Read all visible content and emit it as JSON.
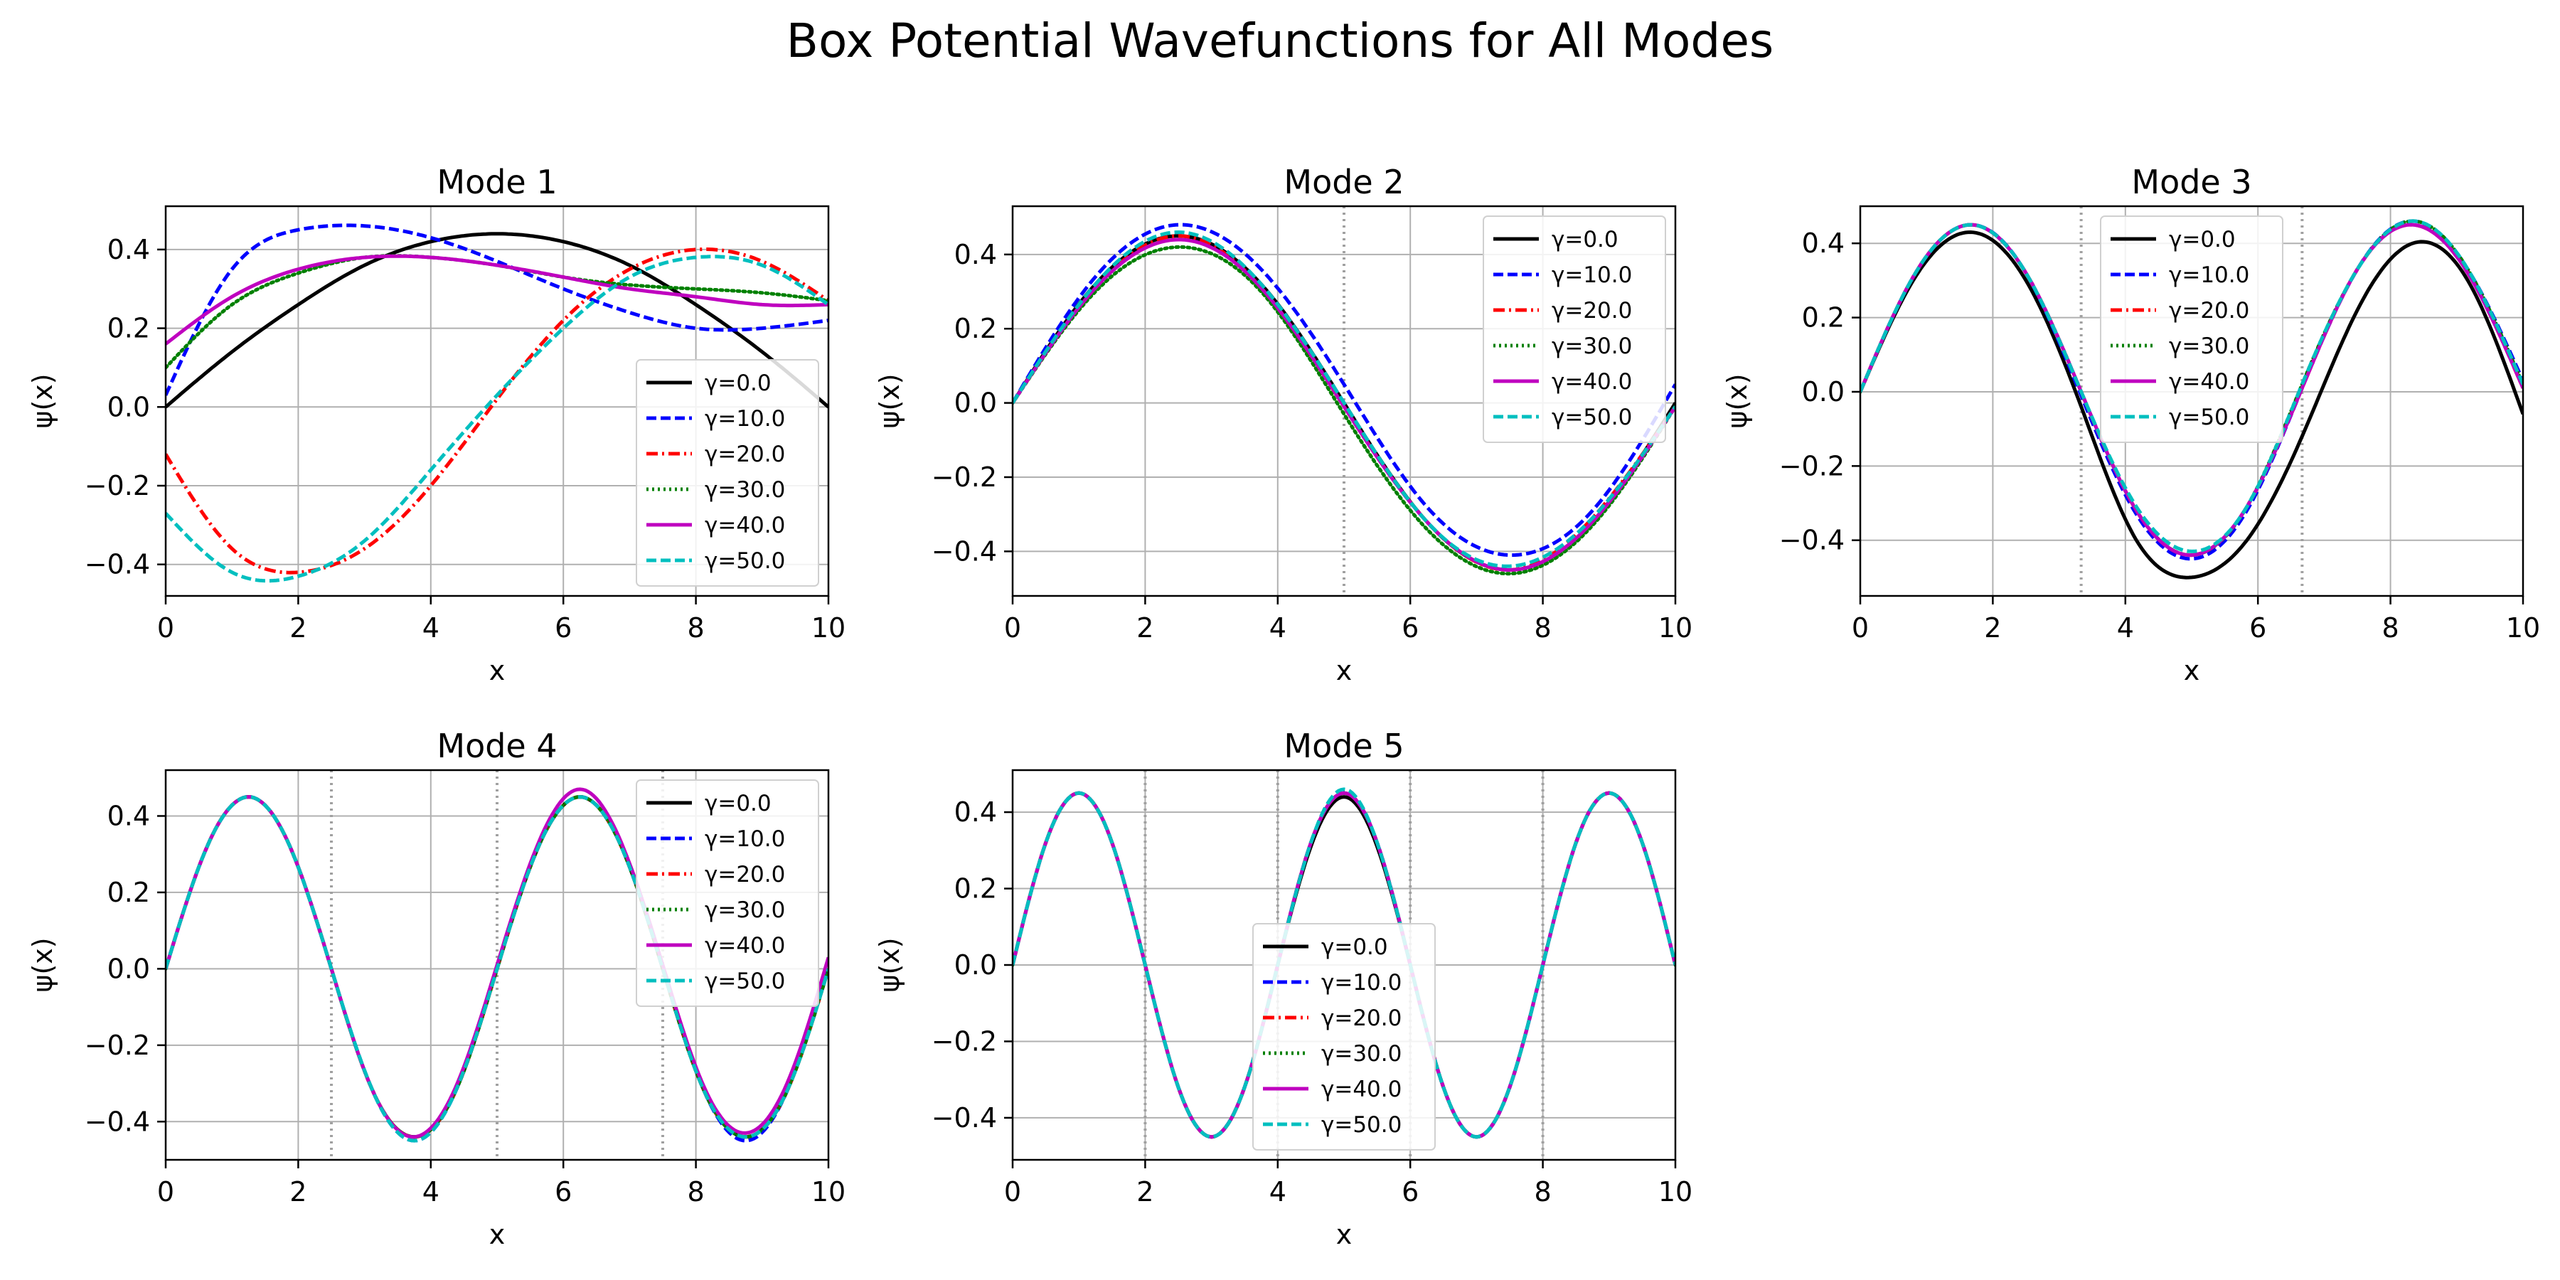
{
  "figure": {
    "title": "Box Potential Wavefunctions for All Modes"
  },
  "legend_labels": [
    "γ=0.0",
    "γ=10.0",
    "γ=20.0",
    "γ=30.0",
    "γ=40.0",
    "γ=50.0"
  ],
  "series_styles": [
    {
      "color": "#000000",
      "dash": "solid"
    },
    {
      "color": "#0000ff",
      "dash": "dashed"
    },
    {
      "color": "#ff0000",
      "dash": "dashdot"
    },
    {
      "color": "#008000",
      "dash": "dotted"
    },
    {
      "color": "#bf00bf",
      "dash": "solid"
    },
    {
      "color": "#00bfbf",
      "dash": "dashed"
    }
  ],
  "chart_data": [
    {
      "type": "line",
      "title": "Mode 1",
      "xlabel": "x",
      "ylabel": "ψ(x)",
      "xlim": [
        0,
        10
      ],
      "ylim": [
        -0.48,
        0.51
      ],
      "xticks": [
        0,
        2,
        4,
        6,
        8,
        10
      ],
      "yticks": [
        -0.4,
        -0.2,
        0.0,
        0.2,
        0.4
      ],
      "grid": true,
      "legend_position": "lower-right",
      "node_lines": [],
      "x": [
        0,
        1,
        2,
        3,
        4,
        5,
        6,
        7,
        8,
        9,
        10
      ],
      "series": [
        {
          "name": "γ=0.0",
          "values": [
            0.0,
            0.14,
            0.26,
            0.36,
            0.42,
            0.44,
            0.42,
            0.36,
            0.26,
            0.14,
            0.0
          ]
        },
        {
          "name": "γ=10.0",
          "values": [
            0.03,
            0.35,
            0.45,
            0.46,
            0.43,
            0.37,
            0.3,
            0.24,
            0.2,
            0.2,
            0.22
          ]
        },
        {
          "name": "γ=20.0",
          "values": [
            -0.12,
            -0.36,
            -0.42,
            -0.36,
            -0.2,
            0.02,
            0.22,
            0.35,
            0.4,
            0.37,
            0.27
          ]
        },
        {
          "name": "γ=30.0",
          "values": [
            0.1,
            0.26,
            0.34,
            0.38,
            0.38,
            0.36,
            0.33,
            0.31,
            0.3,
            0.29,
            0.27
          ]
        },
        {
          "name": "γ=40.0",
          "values": [
            0.16,
            0.28,
            0.35,
            0.38,
            0.38,
            0.36,
            0.33,
            0.3,
            0.28,
            0.26,
            0.26
          ]
        },
        {
          "name": "γ=50.0",
          "values": [
            -0.27,
            -0.42,
            -0.43,
            -0.34,
            -0.16,
            0.03,
            0.2,
            0.33,
            0.38,
            0.36,
            0.26
          ]
        }
      ]
    },
    {
      "type": "line",
      "title": "Mode 2",
      "xlabel": "x",
      "ylabel": "ψ(x)",
      "xlim": [
        0,
        10
      ],
      "ylim": [
        -0.52,
        0.53
      ],
      "xticks": [
        0,
        2,
        4,
        6,
        8,
        10
      ],
      "yticks": [
        -0.4,
        -0.2,
        0.0,
        0.2,
        0.4
      ],
      "grid": true,
      "legend_position": "upper-right",
      "node_lines": [
        5
      ],
      "x": [
        0,
        1.25,
        2.5,
        3.75,
        5,
        6.25,
        7.5,
        8.75,
        10
      ],
      "series": [
        {
          "name": "γ=0.0",
          "values": [
            0.0,
            0.32,
            0.45,
            0.32,
            0.0,
            -0.32,
            -0.45,
            -0.32,
            0.0
          ]
        },
        {
          "name": "γ=10.0",
          "values": [
            0.0,
            0.34,
            0.48,
            0.36,
            0.05,
            -0.28,
            -0.41,
            -0.29,
            0.05
          ]
        },
        {
          "name": "γ=20.0",
          "values": [
            0.0,
            0.31,
            0.45,
            0.31,
            -0.01,
            -0.32,
            -0.45,
            -0.31,
            -0.01
          ]
        },
        {
          "name": "γ=30.0",
          "values": [
            0.0,
            0.3,
            0.42,
            0.3,
            -0.03,
            -0.34,
            -0.46,
            -0.33,
            -0.01
          ]
        },
        {
          "name": "γ=40.0",
          "values": [
            0.0,
            0.31,
            0.44,
            0.31,
            -0.01,
            -0.32,
            -0.45,
            -0.32,
            -0.01
          ]
        },
        {
          "name": "γ=50.0",
          "values": [
            0.0,
            0.32,
            0.46,
            0.32,
            0.0,
            -0.32,
            -0.44,
            -0.31,
            -0.01
          ]
        }
      ]
    },
    {
      "type": "line",
      "title": "Mode 3",
      "xlabel": "x",
      "ylabel": "ψ(x)",
      "xlim": [
        0,
        10
      ],
      "ylim": [
        -0.55,
        0.5
      ],
      "xticks": [
        0,
        2,
        4,
        6,
        8,
        10
      ],
      "yticks": [
        -0.4,
        -0.2,
        0.0,
        0.2,
        0.4
      ],
      "grid": true,
      "legend_position": "upper-center",
      "node_lines": [
        3.333,
        6.667
      ],
      "x": [
        0,
        0.833,
        1.667,
        2.5,
        3.333,
        4.167,
        5,
        5.833,
        6.667,
        7.5,
        8.333,
        9.167,
        10
      ],
      "series": [
        {
          "name": "γ=0.0",
          "values": [
            0.0,
            0.31,
            0.43,
            0.3,
            -0.04,
            -0.4,
            -0.5,
            -0.4,
            -0.12,
            0.22,
            0.4,
            0.3,
            -0.06
          ]
        },
        {
          "name": "γ=10.0",
          "values": [
            0.0,
            0.32,
            0.45,
            0.32,
            -0.01,
            -0.33,
            -0.45,
            -0.32,
            0.01,
            0.33,
            0.46,
            0.33,
            0.03
          ]
        },
        {
          "name": "γ=20.0",
          "values": [
            0.0,
            0.32,
            0.45,
            0.32,
            0.0,
            -0.32,
            -0.44,
            -0.31,
            0.01,
            0.33,
            0.45,
            0.32,
            0.01
          ]
        },
        {
          "name": "γ=30.0",
          "values": [
            0.0,
            0.32,
            0.45,
            0.32,
            0.0,
            -0.32,
            -0.44,
            -0.31,
            0.02,
            0.33,
            0.46,
            0.33,
            0.02
          ]
        },
        {
          "name": "γ=40.0",
          "values": [
            0.0,
            0.32,
            0.45,
            0.32,
            0.0,
            -0.32,
            -0.44,
            -0.31,
            0.01,
            0.33,
            0.45,
            0.32,
            0.01
          ]
        },
        {
          "name": "γ=50.0",
          "values": [
            0.0,
            0.32,
            0.45,
            0.32,
            0.0,
            -0.31,
            -0.43,
            -0.31,
            0.02,
            0.33,
            0.46,
            0.33,
            0.02
          ]
        }
      ]
    },
    {
      "type": "line",
      "title": "Mode 4",
      "xlabel": "x",
      "ylabel": "ψ(x)",
      "xlim": [
        0,
        10
      ],
      "ylim": [
        -0.5,
        0.52
      ],
      "xticks": [
        0,
        2,
        4,
        6,
        8,
        10
      ],
      "yticks": [
        -0.4,
        -0.2,
        0.0,
        0.2,
        0.4
      ],
      "grid": true,
      "legend_position": "upper-right",
      "node_lines": [
        2.5,
        5,
        7.5
      ],
      "x": [
        0,
        0.625,
        1.25,
        1.875,
        2.5,
        3.125,
        3.75,
        4.375,
        5,
        5.625,
        6.25,
        6.875,
        7.5,
        8.125,
        8.75,
        9.375,
        10
      ],
      "series": [
        {
          "name": "γ=0.0",
          "values": [
            0.0,
            0.32,
            0.45,
            0.32,
            0.0,
            -0.32,
            -0.44,
            -0.32,
            0.0,
            0.32,
            0.45,
            0.32,
            0.0,
            -0.32,
            -0.44,
            -0.32,
            0.0
          ]
        },
        {
          "name": "γ=10.0",
          "values": [
            0.0,
            0.32,
            0.45,
            0.32,
            0.0,
            -0.32,
            -0.45,
            -0.32,
            0.0,
            0.32,
            0.45,
            0.32,
            0.0,
            -0.32,
            -0.45,
            -0.32,
            0.0
          ]
        },
        {
          "name": "γ=20.0",
          "values": [
            0.0,
            0.32,
            0.45,
            0.32,
            0.0,
            -0.32,
            -0.44,
            -0.32,
            0.0,
            0.32,
            0.45,
            0.32,
            0.0,
            -0.32,
            -0.44,
            -0.32,
            0.0
          ]
        },
        {
          "name": "γ=30.0",
          "values": [
            0.0,
            0.32,
            0.45,
            0.32,
            0.0,
            -0.32,
            -0.44,
            -0.32,
            0.0,
            0.32,
            0.45,
            0.32,
            0.0,
            -0.32,
            -0.44,
            -0.32,
            0.0
          ]
        },
        {
          "name": "γ=40.0",
          "values": [
            0.0,
            0.32,
            0.45,
            0.32,
            0.0,
            -0.32,
            -0.44,
            -0.31,
            0.01,
            0.33,
            0.47,
            0.33,
            0.01,
            -0.31,
            -0.43,
            -0.3,
            0.03
          ]
        },
        {
          "name": "γ=50.0",
          "values": [
            0.0,
            0.32,
            0.45,
            0.32,
            0.0,
            -0.32,
            -0.45,
            -0.32,
            0.0,
            0.32,
            0.45,
            0.32,
            0.0,
            -0.32,
            -0.44,
            -0.32,
            0.0
          ]
        }
      ]
    },
    {
      "type": "line",
      "title": "Mode 5",
      "xlabel": "x",
      "ylabel": "ψ(x)",
      "xlim": [
        0,
        10
      ],
      "ylim": [
        -0.51,
        0.51
      ],
      "xticks": [
        0,
        2,
        4,
        6,
        8,
        10
      ],
      "yticks": [
        -0.4,
        -0.2,
        0.0,
        0.2,
        0.4
      ],
      "grid": true,
      "legend_position": "lower-center",
      "node_lines": [
        2,
        4,
        6,
        8
      ],
      "x": [
        0,
        0.5,
        1,
        1.5,
        2,
        2.5,
        3,
        3.5,
        4,
        4.5,
        5,
        5.5,
        6,
        6.5,
        7,
        7.5,
        8,
        8.5,
        9,
        9.5,
        10
      ],
      "series": [
        {
          "name": "γ=0.0",
          "values": [
            0.0,
            0.32,
            0.45,
            0.32,
            0.0,
            -0.32,
            -0.45,
            -0.32,
            0.0,
            0.31,
            0.44,
            0.31,
            0.0,
            -0.32,
            -0.45,
            -0.32,
            0.0,
            0.32,
            0.45,
            0.32,
            0.0
          ]
        },
        {
          "name": "γ=10.0",
          "values": [
            0.0,
            0.32,
            0.45,
            0.32,
            0.0,
            -0.32,
            -0.45,
            -0.32,
            0.0,
            0.32,
            0.45,
            0.32,
            0.0,
            -0.32,
            -0.45,
            -0.32,
            0.0,
            0.32,
            0.45,
            0.32,
            0.0
          ]
        },
        {
          "name": "γ=20.0",
          "values": [
            0.0,
            0.32,
            0.45,
            0.32,
            0.0,
            -0.32,
            -0.45,
            -0.32,
            0.0,
            0.32,
            0.45,
            0.32,
            0.0,
            -0.32,
            -0.45,
            -0.32,
            0.0,
            0.32,
            0.45,
            0.32,
            0.0
          ]
        },
        {
          "name": "γ=30.0",
          "values": [
            0.0,
            0.32,
            0.45,
            0.32,
            0.0,
            -0.32,
            -0.45,
            -0.32,
            0.0,
            0.32,
            0.45,
            0.32,
            0.0,
            -0.32,
            -0.45,
            -0.32,
            0.0,
            0.32,
            0.45,
            0.32,
            0.0
          ]
        },
        {
          "name": "γ=40.0",
          "values": [
            0.0,
            0.32,
            0.45,
            0.32,
            0.0,
            -0.32,
            -0.45,
            -0.32,
            0.0,
            0.32,
            0.45,
            0.32,
            0.0,
            -0.32,
            -0.45,
            -0.32,
            0.0,
            0.32,
            0.45,
            0.32,
            0.0
          ]
        },
        {
          "name": "γ=50.0",
          "values": [
            0.0,
            0.32,
            0.45,
            0.32,
            0.0,
            -0.32,
            -0.45,
            -0.32,
            0.0,
            0.32,
            0.46,
            0.32,
            0.0,
            -0.32,
            -0.45,
            -0.32,
            0.0,
            0.32,
            0.45,
            0.32,
            0.0
          ]
        }
      ]
    }
  ]
}
